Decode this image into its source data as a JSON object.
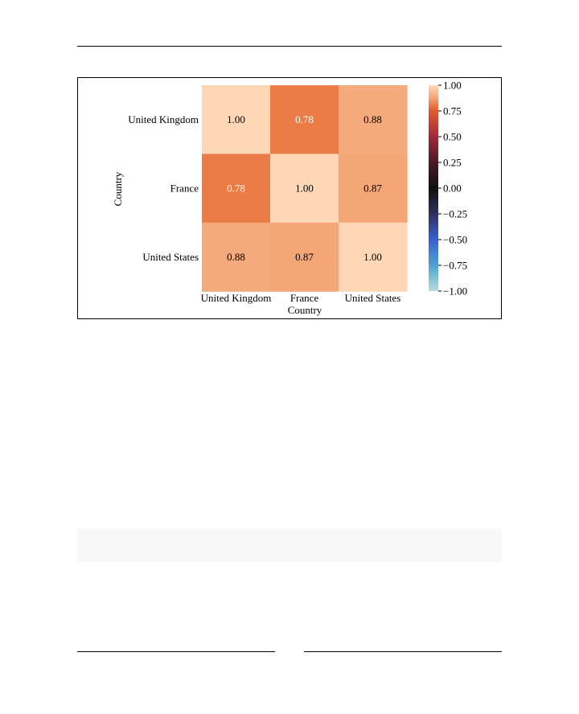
{
  "chart_data": {
    "type": "heatmap",
    "title": "",
    "xlabel": "Country",
    "ylabel": "Country",
    "x_categories": [
      "United Kingdom",
      "France",
      "United States"
    ],
    "y_categories": [
      "United Kingdom",
      "France",
      "United States"
    ],
    "values": [
      [
        1.0,
        0.78,
        0.88
      ],
      [
        0.78,
        1.0,
        0.87
      ],
      [
        0.88,
        0.87,
        1.0
      ]
    ],
    "cell_labels": [
      [
        "1.00",
        "0.78",
        "0.88"
      ],
      [
        "0.78",
        "1.00",
        "0.87"
      ],
      [
        "0.88",
        "0.87",
        "1.00"
      ]
    ],
    "colorbar": {
      "range": [
        -1.0,
        1.0
      ],
      "ticks": [
        1.0,
        0.75,
        0.5,
        0.25,
        0.0,
        -0.25,
        -0.5,
        -0.75,
        -1.0
      ],
      "tick_labels": [
        "1.00",
        "0.75",
        "0.50",
        "0.25",
        "0.00",
        "−0.25",
        "−0.50",
        "−0.75",
        "−1.00"
      ],
      "colormap": "icefire",
      "color_stops": [
        {
          "value": -1.0,
          "color": "#b8ddd8"
        },
        {
          "value": -0.75,
          "color": "#4fa3d0"
        },
        {
          "value": -0.5,
          "color": "#3a5fcd"
        },
        {
          "value": -0.25,
          "color": "#30305e"
        },
        {
          "value": 0.0,
          "color": "#101010"
        },
        {
          "value": 0.25,
          "color": "#4a1a26"
        },
        {
          "value": 0.5,
          "color": "#a02a3a"
        },
        {
          "value": 0.75,
          "color": "#e05a30"
        },
        {
          "value": 0.87,
          "color": "#f2a274"
        },
        {
          "value": 1.0,
          "color": "#fdd8b8"
        }
      ]
    },
    "cell_colors": {
      "1.00": "#fdd7b6",
      "0.78": "#ec7c45",
      "0.88": "#f4aa7c",
      "0.87": "#f4a676"
    },
    "label_colors": {
      "dark": "#000000",
      "light": "#ffffff"
    }
  }
}
